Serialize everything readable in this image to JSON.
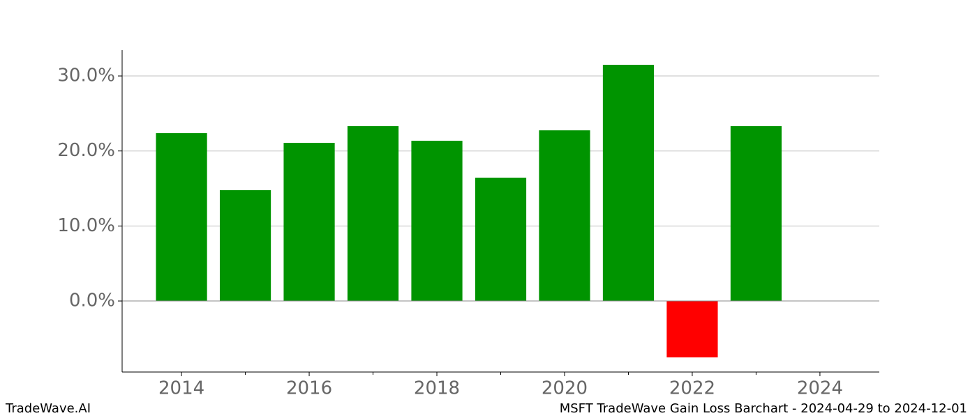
{
  "chart_data": {
    "type": "bar",
    "title": "MSFT TradeWave Gain Loss Barchart - 2024-04-29 to 2024-12-01",
    "source": "TradeWave.AI",
    "x": [
      2014,
      2015,
      2016,
      2017,
      2018,
      2019,
      2020,
      2021,
      2022,
      2023
    ],
    "values": [
      22.38,
      14.77,
      21.08,
      23.31,
      21.36,
      16.44,
      22.75,
      31.49,
      -7.52,
      23.31
    ],
    "positive_color": "#009400",
    "negative_color": "#ff0000",
    "bar_width": 0.8,
    "xlim": [
      2013.07,
      2024.93
    ],
    "xticks": [
      2014,
      2016,
      2018,
      2020,
      2022,
      2024
    ],
    "xticks_minor": [
      2015,
      2017,
      2019,
      2021,
      2023
    ],
    "ylim": [
      -9.47,
      33.44
    ],
    "yticks": [
      {
        "value": 0,
        "label": "0.0%"
      },
      {
        "value": 10,
        "label": "10.0%"
      },
      {
        "value": 20,
        "label": "20.0%"
      },
      {
        "value": 30,
        "label": "30.0%"
      }
    ],
    "grid": true
  }
}
